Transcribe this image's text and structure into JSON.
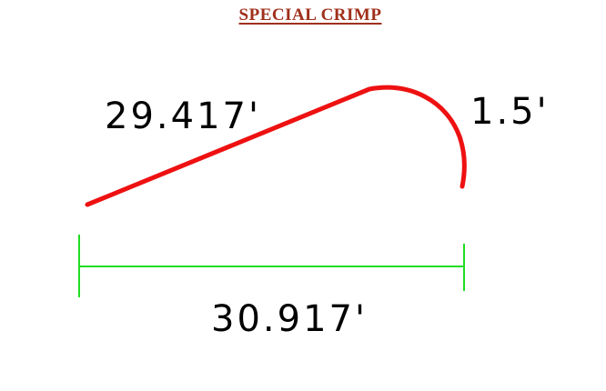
{
  "title": "SPECIAL CRIMP",
  "dimensions": {
    "slope_length": "29.417'",
    "curl_radius": "1.5'",
    "overall_length": "30.917'"
  },
  "colors": {
    "title": "#a0301a",
    "profile_line": "#ee1111",
    "dimension_line": "#22dd22",
    "dimension_text": "#000000"
  }
}
